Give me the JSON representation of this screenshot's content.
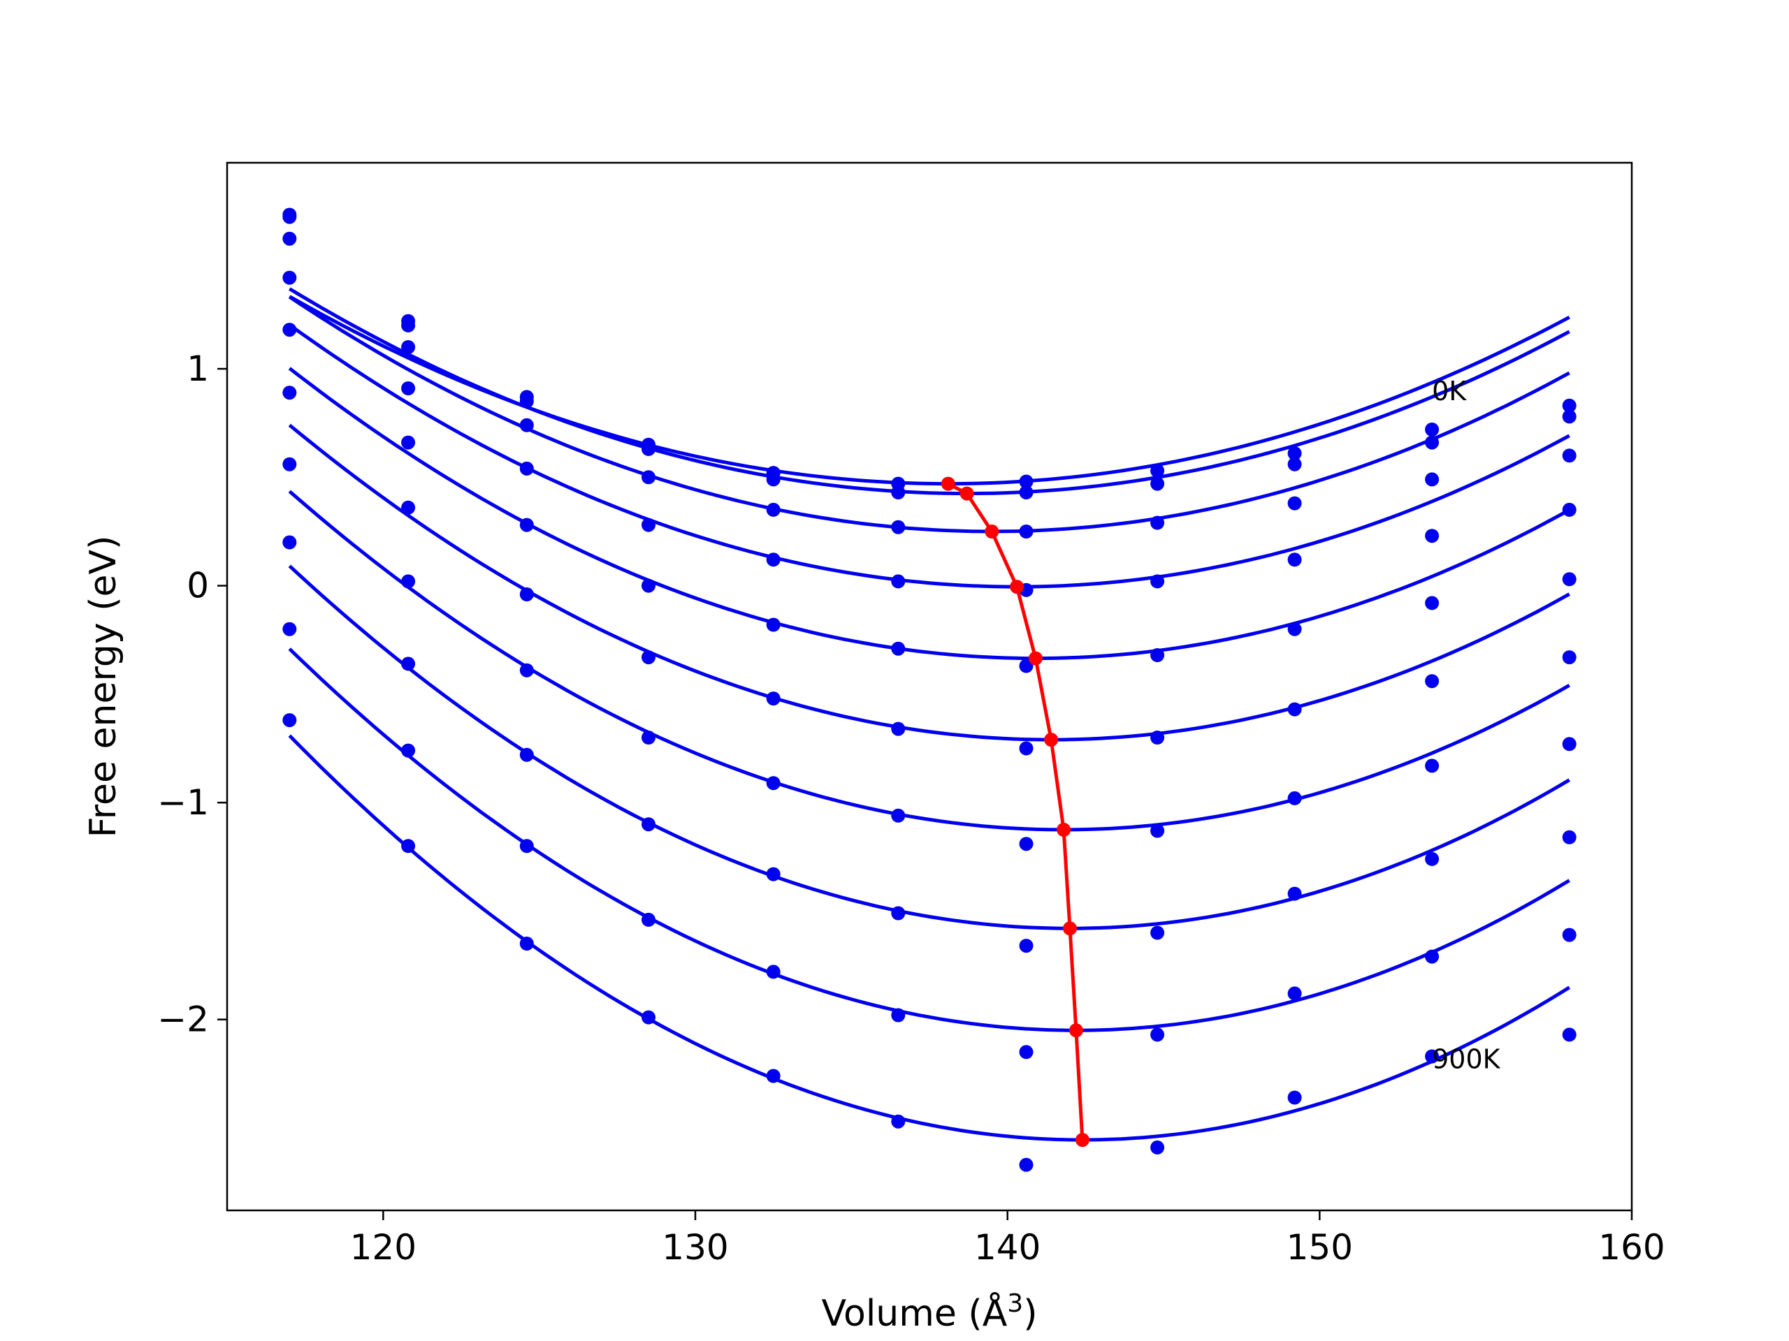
{
  "chart_data": {
    "type": "line",
    "title": "",
    "xlabel": "Volume (Å",
    "xlabel_sup": "3",
    "xlabel_close": ")",
    "ylabel": "Free energy (eV)",
    "xlim": [
      115,
      160
    ],
    "ylim": [
      -2.88,
      1.95
    ],
    "xticks": [
      120,
      130,
      140,
      150,
      160
    ],
    "yticks": [
      1,
      0,
      -1,
      -2
    ],
    "ytick_labels": [
      "1",
      "0",
      "−1",
      "−2"
    ],
    "x": [
      117.0,
      120.8,
      124.6,
      128.5,
      132.5,
      136.5,
      140.6,
      144.8,
      149.2,
      153.6,
      158.0
    ],
    "colors": {
      "series": "#0000ee",
      "minimum": "#ff0000",
      "frame": "#000000"
    },
    "annotations": [
      {
        "text": "0K",
        "x": 153.6,
        "y": 0.9
      },
      {
        "text": "900K",
        "x": 153.6,
        "y": -2.18
      }
    ],
    "series": [
      {
        "values": [
          1.71,
          1.22,
          0.87,
          0.65,
          0.52,
          0.47,
          0.48,
          0.53,
          0.61,
          0.72,
          0.83
        ],
        "fit": {
          "min_x": 138.1,
          "min_y": 0.47
        }
      },
      {
        "values": [
          1.7,
          1.2,
          0.85,
          0.63,
          0.49,
          0.43,
          0.43,
          0.47,
          0.56,
          0.66,
          0.78
        ],
        "fit": {
          "min_x": 138.7,
          "min_y": 0.425
        }
      },
      {
        "values": [
          1.6,
          1.1,
          0.74,
          0.5,
          0.35,
          0.27,
          0.25,
          0.29,
          0.38,
          0.49,
          0.6
        ],
        "fit": {
          "min_x": 139.5,
          "min_y": 0.25
        }
      },
      {
        "values": [
          1.42,
          0.91,
          0.54,
          0.28,
          0.12,
          0.02,
          -0.02,
          0.02,
          0.12,
          0.23,
          0.35
        ],
        "fit": {
          "min_x": 140.3,
          "min_y": -0.005
        }
      },
      {
        "values": [
          1.18,
          0.66,
          0.28,
          0.0,
          -0.18,
          -0.29,
          -0.37,
          -0.32,
          -0.2,
          -0.08,
          0.03
        ],
        "fit": {
          "min_x": 140.9,
          "min_y": -0.335
        }
      },
      {
        "values": [
          0.89,
          0.36,
          -0.04,
          -0.33,
          -0.52,
          -0.66,
          -0.75,
          -0.7,
          -0.57,
          -0.44,
          -0.33
        ],
        "fit": {
          "min_x": 141.4,
          "min_y": -0.71
        }
      },
      {
        "values": [
          0.56,
          0.02,
          -0.39,
          -0.7,
          -0.91,
          -1.06,
          -1.19,
          -1.13,
          -0.98,
          -0.83,
          -0.73
        ],
        "fit": {
          "min_x": 141.8,
          "min_y": -1.125
        }
      },
      {
        "values": [
          0.2,
          -0.36,
          -0.78,
          -1.1,
          -1.33,
          -1.51,
          -1.66,
          -1.6,
          -1.42,
          -1.26,
          -1.16
        ],
        "fit": {
          "min_x": 142.0,
          "min_y": -1.58
        }
      },
      {
        "values": [
          -0.2,
          -0.76,
          -1.2,
          -1.54,
          -1.78,
          -1.98,
          -2.15,
          -2.07,
          -1.88,
          -1.71,
          -1.61
        ],
        "fit": {
          "min_x": 142.2,
          "min_y": -2.05
        }
      },
      {
        "values": [
          -0.62,
          -1.2,
          -1.65,
          -1.99,
          -2.26,
          -2.47,
          -2.67,
          -2.59,
          -2.36,
          -2.17,
          -2.07
        ],
        "fit": {
          "min_x": 142.4,
          "min_y": -2.555
        }
      }
    ]
  }
}
